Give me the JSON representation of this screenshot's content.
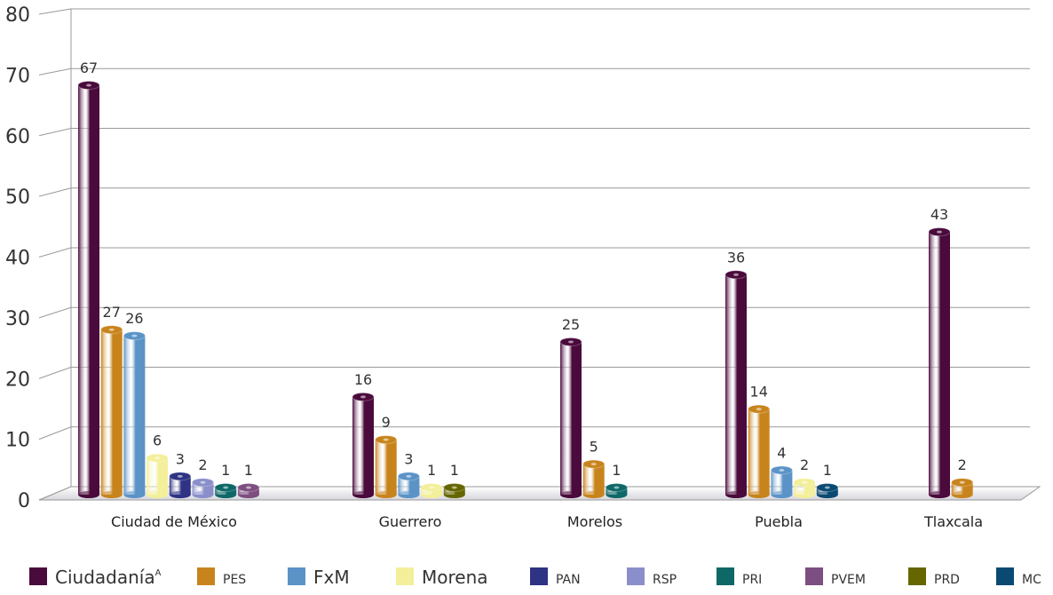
{
  "chart_data": {
    "type": "bar",
    "categories": [
      "Ciudad de México",
      "Guerrero",
      "Morelos",
      "Puebla",
      "Tlaxcala"
    ],
    "ylim": [
      0,
      80
    ],
    "y_ticks": [
      0,
      10,
      20,
      30,
      40,
      50,
      60,
      70,
      80
    ],
    "grid": true,
    "three_d": true,
    "legend_placement": "bottom",
    "colors": {
      "Ciudadanía": "#4a0a3c",
      "PES": "#c8841c",
      "FxM": "#5b93c7",
      "Morena": "#f3ef9a",
      "PAN": "#2e3384",
      "RSP": "#8a8fcb",
      "PRI": "#0f6868",
      "PVEM": "#7d4e80",
      "PRD": "#666600",
      "MC": "#0a4a72"
    },
    "groups": [
      {
        "category": "Ciudad de México",
        "bars": [
          {
            "series": "Ciudadanía",
            "value": 67
          },
          {
            "series": "PES",
            "value": 27
          },
          {
            "series": "FxM",
            "value": 26
          },
          {
            "series": "Morena",
            "value": 6
          },
          {
            "series": "PAN",
            "value": 3
          },
          {
            "series": "RSP",
            "value": 2
          },
          {
            "series": "PRI",
            "value": 1
          },
          {
            "series": "PVEM",
            "value": 1
          }
        ]
      },
      {
        "category": "Guerrero",
        "bars": [
          {
            "series": "Ciudadanía",
            "value": 16
          },
          {
            "series": "PES",
            "value": 9
          },
          {
            "series": "FxM",
            "value": 3
          },
          {
            "series": "Morena",
            "value": 1
          },
          {
            "series": "PRD",
            "value": 1
          }
        ]
      },
      {
        "category": "Morelos",
        "bars": [
          {
            "series": "Ciudadanía",
            "value": 25
          },
          {
            "series": "PES",
            "value": 5
          },
          {
            "series": "PRI",
            "value": 1
          }
        ]
      },
      {
        "category": "Puebla",
        "bars": [
          {
            "series": "Ciudadanía",
            "value": 36
          },
          {
            "series": "PES",
            "value": 14
          },
          {
            "series": "FxM",
            "value": 4
          },
          {
            "series": "Morena",
            "value": 2
          },
          {
            "series": "MC",
            "value": 1
          }
        ]
      },
      {
        "category": "Tlaxcala",
        "bars": [
          {
            "series": "Ciudadanía",
            "value": 43
          },
          {
            "series": "PES",
            "value": 2
          }
        ]
      }
    ],
    "legend": [
      {
        "name": "Ciudadanía",
        "superscript": "A",
        "size": "large"
      },
      {
        "name": "PES",
        "size": "small"
      },
      {
        "name": "FxM",
        "size": "large"
      },
      {
        "name": "Morena",
        "size": "large"
      },
      {
        "name": "PAN",
        "size": "small"
      },
      {
        "name": "RSP",
        "size": "small"
      },
      {
        "name": "PRI",
        "size": "small"
      },
      {
        "name": "PVEM",
        "size": "small"
      },
      {
        "name": "PRD",
        "size": "small"
      },
      {
        "name": "MC",
        "size": "small"
      }
    ]
  }
}
